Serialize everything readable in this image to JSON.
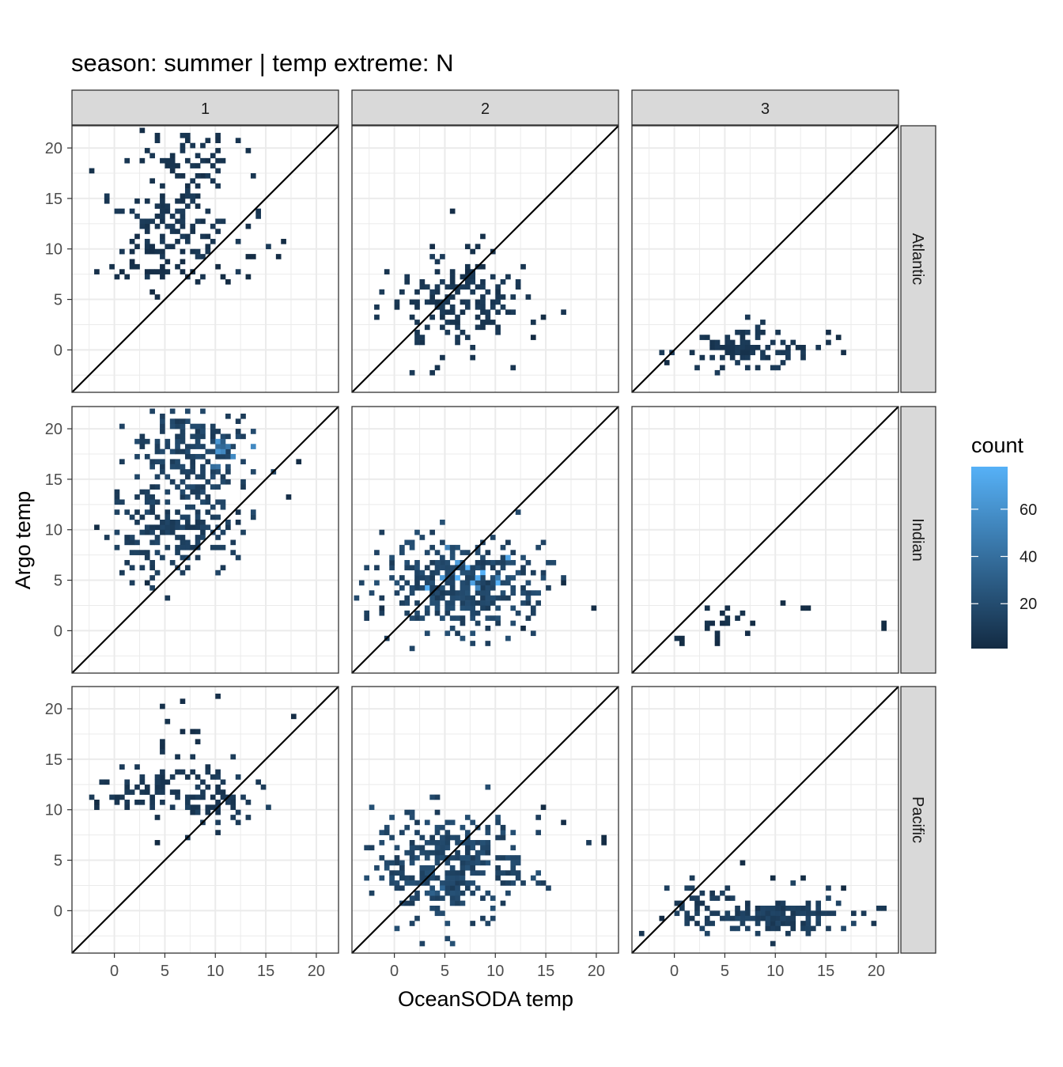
{
  "chart_data": {
    "type": "heatmap",
    "title": "season: summer | temp extreme: N",
    "xlabel": "OceanSODA temp",
    "ylabel": "Argo temp",
    "facet_cols": [
      "1",
      "2",
      "3"
    ],
    "facet_rows": [
      "Atlantic",
      "Indian",
      "Pacific"
    ],
    "xlim": [
      -4.2,
      22.2
    ],
    "ylim": [
      -4.2,
      22.2
    ],
    "x_ticks": [
      0,
      5,
      10,
      15,
      20
    ],
    "y_ticks": [
      0,
      5,
      10,
      15,
      20
    ],
    "grid": true,
    "reference_line": "y = x",
    "legend": {
      "title": "count",
      "position": "right",
      "ticks": [
        20,
        40,
        60
      ],
      "range": [
        1,
        78
      ],
      "color_low": "#132B43",
      "color_high": "#56B1F7"
    },
    "panels": [
      {
        "col": "1",
        "row": "Atlantic",
        "blobs": [
          {
            "cx": 7.5,
            "cy": 19.5,
            "sx": 2.4,
            "sy": 1.8,
            "n": 60,
            "c": 6
          },
          {
            "cx": 6.0,
            "cy": 13.0,
            "sx": 3.2,
            "sy": 2.3,
            "n": 110,
            "c": 8
          },
          {
            "cx": 4.0,
            "cy": 8.5,
            "sx": 2.5,
            "sy": 1.3,
            "n": 35,
            "c": 4
          },
          {
            "cx": 12.0,
            "cy": 8.0,
            "sx": 2.5,
            "sy": 1.5,
            "n": 8,
            "c": 2
          }
        ],
        "cells": [
          [
            16.5,
            10.5,
            2
          ],
          [
            2.5,
            21.5,
            3
          ],
          [
            10.0,
            8.0,
            1
          ]
        ]
      },
      {
        "col": "2",
        "row": "Atlantic",
        "blobs": [
          {
            "cx": 5.5,
            "cy": 4.5,
            "sx": 3.4,
            "sy": 2.3,
            "n": 150,
            "c": 8
          },
          {
            "cx": 8.0,
            "cy": 9.0,
            "sx": 1.5,
            "sy": 1.2,
            "n": 12,
            "c": 4
          }
        ],
        "cells": [
          [
            5.5,
            13.8,
            3
          ],
          [
            14.5,
            3.0,
            2
          ],
          [
            13.5,
            1.2,
            1
          ]
        ]
      },
      {
        "col": "3",
        "row": "Atlantic",
        "blobs": [
          {
            "cx": 6.5,
            "cy": 0.2,
            "sx": 3.8,
            "sy": 1.0,
            "n": 95,
            "c": 8
          }
        ],
        "cells": [
          [
            15.0,
            1.8,
            3
          ],
          [
            16.5,
            -0.5,
            4
          ],
          [
            16.0,
            1.2,
            2
          ],
          [
            -1.0,
            -1.5,
            2
          ]
        ]
      },
      {
        "col": "1",
        "row": "Indian",
        "blobs": [
          {
            "cx": 7.5,
            "cy": 16.5,
            "sx": 3.0,
            "sy": 3.2,
            "n": 220,
            "c": 14
          },
          {
            "cx": 5.5,
            "cy": 9.5,
            "sx": 3.2,
            "sy": 2.0,
            "n": 140,
            "c": 12
          },
          {
            "cx": 10.5,
            "cy": 17.5,
            "sx": 1.0,
            "sy": 1.0,
            "n": 12,
            "c": 48
          }
        ],
        "cells": [
          [
            17.0,
            13.0,
            3
          ],
          [
            18.0,
            16.5,
            2
          ],
          [
            -2.0,
            10.0,
            2
          ],
          [
            3.0,
            4.5,
            1
          ],
          [
            13.5,
            18.0,
            55
          ]
        ]
      },
      {
        "col": "2",
        "row": "Indian",
        "blobs": [
          {
            "cx": 7.0,
            "cy": 4.5,
            "sx": 4.0,
            "sy": 2.2,
            "n": 360,
            "c": 16
          },
          {
            "cx": 7.5,
            "cy": 5.5,
            "sx": 1.4,
            "sy": 1.0,
            "n": 14,
            "c": 70
          }
        ],
        "cells": [
          [
            19.5,
            2.2,
            3
          ],
          [
            16.5,
            4.8,
            2
          ],
          [
            12.5,
            0.2,
            1
          ],
          [
            -1.5,
            2.0,
            4
          ]
        ]
      },
      {
        "col": "3",
        "row": "Indian",
        "blobs": [
          {
            "cx": 3.5,
            "cy": 1.0,
            "sx": 1.4,
            "sy": 1.1,
            "n": 18,
            "c": 4
          }
        ],
        "cells": [
          [
            10.5,
            2.5,
            2
          ],
          [
            12.5,
            2.2,
            2
          ],
          [
            13.0,
            2.2,
            2
          ],
          [
            20.5,
            0.8,
            2
          ],
          [
            20.5,
            0.4,
            2
          ],
          [
            0.5,
            -1.5,
            2
          ],
          [
            0.5,
            -1.0,
            2
          ],
          [
            4.0,
            -1.5,
            1
          ],
          [
            7.5,
            0.5,
            2
          ]
        ]
      },
      {
        "col": "1",
        "row": "Pacific",
        "blobs": [
          {
            "cx": 4.5,
            "cy": 12.0,
            "sx": 3.2,
            "sy": 1.8,
            "n": 75,
            "c": 8
          },
          {
            "cx": 7.0,
            "cy": 19.0,
            "sx": 1.5,
            "sy": 2.0,
            "n": 12,
            "c": 4
          },
          {
            "cx": 11.0,
            "cy": 10.5,
            "sx": 2.2,
            "sy": 1.5,
            "n": 45,
            "c": 10
          }
        ],
        "cells": [
          [
            17.5,
            19.0,
            2
          ],
          [
            -2.0,
            10.5,
            2
          ],
          [
            4.0,
            6.5,
            1
          ]
        ]
      },
      {
        "col": "2",
        "row": "Pacific",
        "blobs": [
          {
            "cx": 5.5,
            "cy": 4.5,
            "sx": 3.6,
            "sy": 2.7,
            "n": 320,
            "c": 16
          },
          {
            "cx": 4.0,
            "cy": 2.0,
            "sx": 1.5,
            "sy": 1.0,
            "n": 10,
            "c": 30
          }
        ],
        "cells": [
          [
            20.5,
            6.5,
            2
          ],
          [
            20.5,
            7.0,
            2
          ],
          [
            16.5,
            8.8,
            3
          ],
          [
            14.5,
            10.0,
            2
          ]
        ]
      },
      {
        "col": "3",
        "row": "Pacific",
        "blobs": [
          {
            "cx": 10.5,
            "cy": -0.5,
            "sx": 4.0,
            "sy": 0.9,
            "n": 150,
            "c": 12
          },
          {
            "cx": 3.0,
            "cy": 0.8,
            "sx": 1.6,
            "sy": 1.1,
            "n": 35,
            "c": 10
          }
        ],
        "cells": [
          [
            6.5,
            4.8,
            2
          ],
          [
            9.5,
            3.0,
            2
          ],
          [
            12.5,
            3.0,
            2
          ],
          [
            16.5,
            2.0,
            1
          ],
          [
            -1.5,
            -0.8,
            1
          ]
        ]
      }
    ]
  }
}
